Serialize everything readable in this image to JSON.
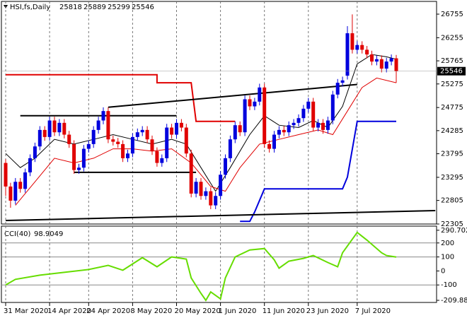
{
  "chart_data": {
    "type": "candlestick",
    "title": "HSI,fs,Daily",
    "categories": [
      "31 Mar 2020",
      null,
      null,
      null,
      null,
      null,
      null,
      null,
      null,
      "14 Apr 2020",
      null,
      null,
      null,
      null,
      null,
      null,
      null,
      "24 Apr 2020",
      null,
      null,
      null,
      null,
      null,
      null,
      null,
      null,
      "8 May 2020",
      null,
      null,
      null,
      null,
      null,
      null,
      null,
      null,
      "20 May 2020",
      null,
      null,
      null,
      null,
      null,
      null,
      null,
      null,
      "1 Jun 2020",
      null,
      null,
      null,
      null,
      null,
      null,
      null,
      null,
      "11 Jun 2020",
      null,
      null,
      null,
      null,
      null,
      null,
      null,
      null,
      "23 Jun 2020",
      null,
      null,
      null,
      null,
      null,
      null,
      null,
      null,
      null,
      "7 Jul 2020",
      null,
      null,
      null,
      null,
      null,
      null,
      null,
      null
    ],
    "open": [
      23600,
      23100,
      22800,
      23200,
      23050,
      23400,
      23700,
      23950,
      24300,
      24150,
      24500,
      24250,
      24450,
      24200,
      24000,
      23450,
      23500,
      23900,
      24000,
      24300,
      24500,
      24700,
      24100,
      24050,
      24000,
      23700,
      23800,
      24150,
      24250,
      24300,
      24100,
      23850,
      23600,
      23700,
      24350,
      24200,
      24450,
      24350,
      23800,
      22950,
      23200,
      22900,
      23000,
      22700,
      22900,
      23350,
      23700,
      24100,
      24400,
      24250,
      24950,
      24800,
      24900,
      25200,
      24000,
      23900,
      24200,
      24300,
      24250,
      24400,
      24450,
      24550,
      24750,
      24900,
      24350,
      24450,
      24300,
      24500,
      25050,
      25300,
      25450,
      26350,
      26000,
      26100,
      26000,
      25900,
      25750,
      25800,
      25600,
      25750,
      25818
    ],
    "high": [
      23680,
      23180,
      23280,
      23280,
      23480,
      23780,
      24030,
      24380,
      24380,
      24580,
      24580,
      24530,
      24530,
      24280,
      24080,
      23580,
      23980,
      24080,
      24380,
      24580,
      24780,
      24780,
      24180,
      24130,
      24080,
      23880,
      24230,
      24330,
      24380,
      24380,
      24180,
      23930,
      23780,
      24430,
      24430,
      24530,
      24530,
      24430,
      23880,
      23280,
      23280,
      23080,
      23080,
      22980,
      23430,
      23780,
      24180,
      24480,
      24480,
      25030,
      25030,
      24980,
      25280,
      25280,
      24080,
      24280,
      24380,
      24380,
      24480,
      24530,
      24630,
      24830,
      24980,
      24980,
      24530,
      24530,
      24580,
      25130,
      25380,
      25430,
      26500,
      26750,
      26180,
      26180,
      26080,
      25980,
      25880,
      25880,
      25830,
      25900,
      25889
    ],
    "low": [
      22900,
      22650,
      22720,
      22970,
      22970,
      23320,
      23620,
      23870,
      24070,
      24070,
      24170,
      24170,
      24120,
      23920,
      23370,
      23370,
      23420,
      23820,
      23920,
      24220,
      24420,
      24020,
      23970,
      23920,
      23620,
      23620,
      23720,
      24070,
      24170,
      24020,
      23770,
      23520,
      23520,
      23620,
      24120,
      24120,
      24270,
      23720,
      22870,
      22870,
      22820,
      22820,
      22620,
      22620,
      22820,
      23270,
      23620,
      24020,
      24170,
      24170,
      24720,
      24720,
      24820,
      23920,
      23820,
      23820,
      24120,
      24170,
      24170,
      24320,
      24370,
      24470,
      24670,
      24270,
      24270,
      24220,
      24220,
      24420,
      24970,
      25220,
      25370,
      25920,
      25920,
      25920,
      25820,
      25670,
      25670,
      25520,
      25520,
      25670,
      25299
    ],
    "close": [
      23100,
      22800,
      23200,
      23050,
      23400,
      23700,
      23950,
      24300,
      24150,
      24500,
      24250,
      24450,
      24200,
      24000,
      23450,
      23500,
      23900,
      24000,
      24300,
      24500,
      24700,
      24100,
      24050,
      24000,
      23700,
      23800,
      24150,
      24250,
      24300,
      24100,
      23850,
      23600,
      23700,
      24350,
      24200,
      24450,
      24350,
      23800,
      22950,
      23200,
      22900,
      23000,
      22700,
      22900,
      23350,
      23700,
      24100,
      24400,
      24250,
      24950,
      24800,
      24900,
      25200,
      24000,
      23900,
      24200,
      24300,
      24250,
      24400,
      24450,
      24550,
      24750,
      24900,
      24350,
      24450,
      24300,
      24500,
      25050,
      25300,
      25350,
      26350,
      26000,
      26100,
      26000,
      25900,
      25750,
      25800,
      25600,
      25750,
      25820,
      25546
    ],
    "up_color": "#0000dd",
    "down_color": "#e00000",
    "ylim": [
      22305,
      26980
    ],
    "yticks": [
      26755,
      26255,
      25765,
      25275,
      24775,
      24285,
      23795,
      23295,
      22805,
      22305
    ],
    "overlays": [
      {
        "color": "#000000",
        "x": [
          0,
          3,
          6,
          10,
          14,
          18,
          22,
          26,
          30,
          34,
          37,
          40,
          43,
          46,
          50,
          53,
          56,
          60,
          63,
          66,
          69,
          72,
          75,
          78,
          80
        ],
        "values": [
          23800,
          23500,
          23700,
          24100,
          24000,
          24100,
          24200,
          24100,
          24000,
          24100,
          24000,
          23500,
          23000,
          23500,
          24200,
          24600,
          24400,
          24350,
          24500,
          24350,
          24800,
          25700,
          25900,
          25850,
          25800
        ]
      },
      {
        "color": "#e00000",
        "x": [
          2,
          6,
          10,
          14,
          18,
          22,
          26,
          30,
          34,
          38,
          42,
          45,
          48,
          52,
          56,
          60,
          64,
          67,
          70,
          73,
          76,
          80
        ],
        "values": [
          22700,
          23200,
          23700,
          23600,
          23700,
          23900,
          23900,
          23850,
          23900,
          23600,
          23100,
          23000,
          23500,
          24000,
          24100,
          24200,
          24300,
          24200,
          24700,
          25200,
          25400,
          25300
        ]
      },
      {
        "color": "#e00000",
        "width": 2,
        "x": [
          0,
          31,
          31,
          38,
          39,
          47
        ],
        "values": [
          25470,
          25470,
          25300,
          25300,
          24480,
          24480
        ]
      },
      {
        "color": "#0000dd",
        "width": 2,
        "x": [
          48,
          50,
          51,
          53,
          69,
          70,
          72,
          80
        ],
        "values": [
          22360,
          22360,
          22560,
          23050,
          23050,
          23300,
          24480,
          24480
        ]
      },
      {
        "color": "#000000",
        "width": 2,
        "x": [
          21,
          72
        ],
        "values": [
          24780,
          25265
        ]
      },
      {
        "color": "#000000",
        "width": 2,
        "x": [
          3,
          35
        ],
        "values": [
          24600,
          24600
        ]
      },
      {
        "color": "#000000",
        "width": 2,
        "x": [
          14,
          39
        ],
        "values": [
          23400,
          23400
        ]
      },
      {
        "color": "#000000",
        "width": 2,
        "x": [
          0,
          88
        ],
        "values": [
          22380,
          22590
        ]
      }
    ],
    "indicator": {
      "title": "CCI(40)",
      "last_value": 98.9049,
      "color": "#66dd00",
      "x": [
        0,
        2,
        7,
        12,
        17,
        21,
        24,
        28,
        31,
        34,
        37,
        38,
        40,
        41,
        42,
        44,
        45,
        47,
        50,
        53,
        55,
        56,
        58,
        61,
        63,
        66,
        68,
        69,
        72,
        74,
        77,
        78,
        80
      ],
      "values": [
        -100,
        -60,
        -30,
        -10,
        10,
        40,
        5,
        95,
        30,
        100,
        85,
        -50,
        -160,
        -210,
        -150,
        -200,
        -50,
        100,
        150,
        160,
        80,
        20,
        70,
        90,
        110,
        60,
        30,
        130,
        275,
        220,
        130,
        110,
        98.9049
      ],
      "ylim": [
        -225,
        310
      ],
      "levels": [
        200,
        100,
        -100
      ],
      "yticks": [
        290.7027,
        200,
        100,
        0,
        -100,
        {
          "value": -209.886,
          "label": "-209.8860"
        }
      ]
    }
  }
}
